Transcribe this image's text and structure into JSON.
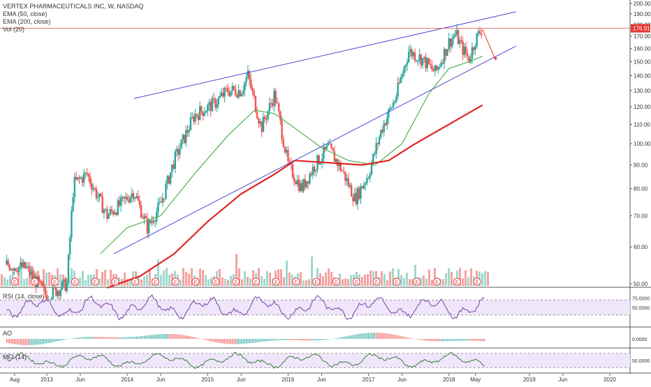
{
  "legend": {
    "title": "VERTEX PHARMACEUTICALS INC, W, NASDAQ",
    "ema50": "EMA (50, close)",
    "ema200": "EMA (200, close)",
    "vol": "Vol (20)"
  },
  "panes": {
    "rsi_label": "RSI (14, close)",
    "ao_label": "AO",
    "mfi_label": "MFI (14)"
  },
  "colors": {
    "up": "#26a69a",
    "down": "#ef5350",
    "ema50": "#4caf50",
    "ema200": "#e02424",
    "channel": "#4a4ad6",
    "indicator_fill": "#efe6fb",
    "earnings_marker": "#e84b4b"
  },
  "chart_data": [
    {
      "type": "candlestick",
      "title": "VERTEX PHARMACEUTICALS INC, W, NASDAQ",
      "interval": "weekly",
      "last_price": "176.91",
      "y_axis": {
        "ticks": [
          "200.00",
          "190.00",
          "180.00",
          "170.00",
          "160.00",
          "150.00",
          "140.00",
          "130.00",
          "120.00",
          "110.00",
          "100.00",
          "90.00",
          "80.00",
          "70.00",
          "60.00",
          "50.00"
        ],
        "scale": "log"
      },
      "x_axis": {
        "ticks": [
          "Aug",
          "2013",
          "Jun",
          "2014",
          "Jun",
          "2015",
          "Jun",
          "2016",
          "Jun",
          "2017",
          "Jun",
          "2018",
          "May",
          "2019",
          "Jun",
          "2020"
        ]
      },
      "price_path": [
        {
          "x": "2012-07",
          "close": 55
        },
        {
          "x": "2012-10",
          "close": 54
        },
        {
          "x": "2013-01",
          "close": 47
        },
        {
          "x": "2013-04",
          "close": 50
        },
        {
          "x": "2013-05",
          "close": 82
        },
        {
          "x": "2013-07",
          "close": 86
        },
        {
          "x": "2013-10",
          "close": 70
        },
        {
          "x": "2013-12",
          "close": 74
        },
        {
          "x": "2014-02",
          "close": 79
        },
        {
          "x": "2014-04",
          "close": 66
        },
        {
          "x": "2014-06",
          "close": 74
        },
        {
          "x": "2014-08",
          "close": 92
        },
        {
          "x": "2014-11",
          "close": 115
        },
        {
          "x": "2015-02",
          "close": 122
        },
        {
          "x": "2015-04",
          "close": 130
        },
        {
          "x": "2015-06",
          "close": 130
        },
        {
          "x": "2015-07",
          "close": 140
        },
        {
          "x": "2015-09",
          "close": 108
        },
        {
          "x": "2015-11",
          "close": 128
        },
        {
          "x": "2016-01",
          "close": 90
        },
        {
          "x": "2016-03",
          "close": 80
        },
        {
          "x": "2016-05",
          "close": 90
        },
        {
          "x": "2016-07",
          "close": 98
        },
        {
          "x": "2016-09",
          "close": 88
        },
        {
          "x": "2016-11",
          "close": 76
        },
        {
          "x": "2017-01",
          "close": 86
        },
        {
          "x": "2017-03",
          "close": 108
        },
        {
          "x": "2017-05",
          "close": 125
        },
        {
          "x": "2017-07",
          "close": 158
        },
        {
          "x": "2017-09",
          "close": 152
        },
        {
          "x": "2017-11",
          "close": 142
        },
        {
          "x": "2018-01",
          "close": 165
        },
        {
          "x": "2018-02",
          "close": 172
        },
        {
          "x": "2018-03",
          "close": 160
        },
        {
          "x": "2018-04",
          "close": 152
        },
        {
          "x": "2018-05",
          "close": 168
        },
        {
          "x": "2018-06",
          "close": 177
        }
      ],
      "series": [
        {
          "name": "EMA (50, close)",
          "values": [
            {
              "x": "2013-09",
              "y": 58
            },
            {
              "x": "2014-01",
              "y": 66
            },
            {
              "x": "2014-06",
              "y": 70
            },
            {
              "x": "2014-11",
              "y": 86
            },
            {
              "x": "2015-04",
              "y": 104
            },
            {
              "x": "2015-08",
              "y": 118
            },
            {
              "x": "2015-11",
              "y": 116
            },
            {
              "x": "2016-02",
              "y": 108
            },
            {
              "x": "2016-06",
              "y": 98
            },
            {
              "x": "2016-10",
              "y": 92
            },
            {
              "x": "2017-02",
              "y": 90
            },
            {
              "x": "2017-06",
              "y": 100
            },
            {
              "x": "2017-10",
              "y": 128
            },
            {
              "x": "2018-01",
              "y": 145
            },
            {
              "x": "2018-04",
              "y": 150
            },
            {
              "x": "2018-06",
              "y": 154
            }
          ]
        },
        {
          "name": "EMA (200, close)",
          "values": [
            {
              "x": "2013-10",
              "y": 49
            },
            {
              "x": "2014-03",
              "y": 52
            },
            {
              "x": "2014-08",
              "y": 58
            },
            {
              "x": "2015-01",
              "y": 68
            },
            {
              "x": "2015-06",
              "y": 78
            },
            {
              "x": "2015-11",
              "y": 86
            },
            {
              "x": "2016-02",
              "y": 92
            },
            {
              "x": "2016-07",
              "y": 91
            },
            {
              "x": "2016-12",
              "y": 90
            },
            {
              "x": "2017-04",
              "y": 92
            },
            {
              "x": "2017-08",
              "y": 100
            },
            {
              "x": "2018-01",
              "y": 110
            },
            {
              "x": "2018-06",
              "y": 121
            }
          ]
        }
      ],
      "channel_lines": [
        {
          "from": {
            "x": "2014-02",
            "y": 125
          },
          "to": {
            "x": "2018-11",
            "y": 192
          }
        },
        {
          "from": {
            "x": "2013-11",
            "y": 58
          },
          "to": {
            "x": "2018-11",
            "y": 162
          }
        }
      ],
      "projection_arrow": {
        "from": {
          "x": "2018-06",
          "y": 176
        },
        "to": {
          "x": "2018-08",
          "y": 151
        }
      },
      "horizontal_line": {
        "y": 176.91
      }
    },
    {
      "type": "line",
      "name": "RSI (14, close)",
      "y_ticks": [
        "75.0000",
        "50.0000"
      ],
      "band": [
        30,
        70
      ]
    },
    {
      "type": "bar",
      "name": "AO",
      "y_ticks": [
        "0.0000"
      ]
    },
    {
      "type": "line",
      "name": "MFI (14)",
      "y_ticks": [
        "50.0000"
      ],
      "band": [
        20,
        80
      ]
    }
  ]
}
